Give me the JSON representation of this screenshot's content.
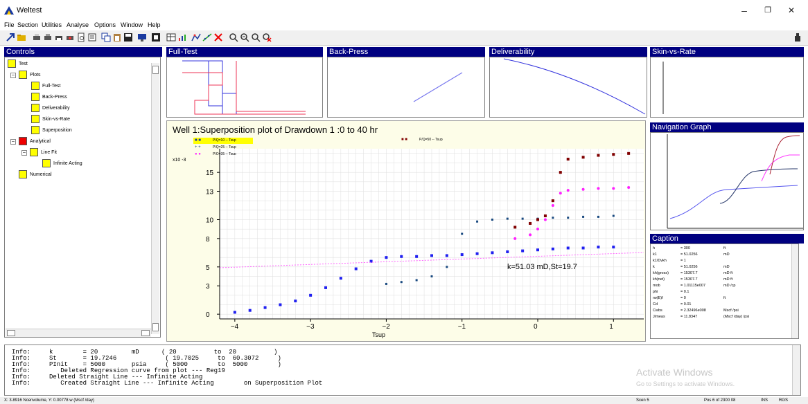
{
  "app": {
    "title": "Weltest"
  },
  "menu": [
    "File",
    "Section",
    "Utilities",
    "Analyse",
    "Options",
    "Window",
    "Help"
  ],
  "window_controls": {
    "minimize": "–",
    "maximize": "❐",
    "close": "✕"
  },
  "panels": {
    "controls": "Controls",
    "full_test": "Full-Test",
    "back_press": "Back-Press",
    "deliverability": "Deliverability",
    "skin_vs_rate": "Skin-vs-Rate",
    "navigation": "Navigation Graph",
    "caption": "Caption"
  },
  "tree": [
    {
      "label": "Test",
      "color": "#ffff00"
    },
    {
      "label": "Plots",
      "color": "#ffff00"
    },
    {
      "label": "Full-Test",
      "color": "#ffff00"
    },
    {
      "label": "Back-Press",
      "color": "#ffff00"
    },
    {
      "label": "Deliverability",
      "color": "#ffff00"
    },
    {
      "label": "Skin-vs-Rate",
      "color": "#ffff00"
    },
    {
      "label": "Superposition",
      "color": "#ffff00"
    },
    {
      "label": "Analytical",
      "color": "#ee0000"
    },
    {
      "label": "Line Fit",
      "color": "#ffff00"
    },
    {
      "label": "Infinite Acting",
      "color": "#ffff00"
    },
    {
      "label": "Numerical",
      "color": "#ffff00"
    }
  ],
  "main_plot": {
    "title": "Well 1:Superposition plot of Drawdown 1 :0 to 40 hr",
    "annotation": "k=51.03 mD,St=19.7",
    "y_multiplier": "x10 -3",
    "legend": [
      "P/Q=10 -- Tsup",
      "P/Q=25 -- Tsup",
      "P/Q=35 -- Tsup",
      "P/Q=50 -- Tsup"
    ]
  },
  "chart_data": {
    "type": "scatter",
    "title": "Well 1:Superposition plot of Drawdown 1 :0 to 40 hr",
    "xlabel": "Tsup",
    "ylabel": "",
    "xlim": [
      -4.2,
      1.4
    ],
    "ylim": [
      -0.5,
      17.5
    ],
    "xticks": [
      -4,
      -3,
      -2,
      -1,
      0,
      1
    ],
    "yticks": [
      0,
      3,
      5,
      8,
      10,
      13,
      15
    ],
    "grid": true,
    "legend_position": "top-left",
    "series": [
      {
        "name": "P/Q=10 -- Tsup",
        "color": "#2020f0",
        "points": [
          [
            -4.0,
            0.2
          ],
          [
            -3.8,
            0.4
          ],
          [
            -3.6,
            0.7
          ],
          [
            -3.4,
            1.0
          ],
          [
            -3.2,
            1.4
          ],
          [
            -3.0,
            2.0
          ],
          [
            -2.8,
            2.8
          ],
          [
            -2.6,
            3.8
          ],
          [
            -2.4,
            4.8
          ],
          [
            -2.2,
            5.6
          ],
          [
            -2.0,
            6.0
          ],
          [
            -1.8,
            6.1
          ],
          [
            -1.6,
            6.1
          ],
          [
            -1.4,
            6.2
          ],
          [
            -1.2,
            6.2
          ],
          [
            -1.0,
            6.3
          ],
          [
            -0.8,
            6.4
          ],
          [
            -0.6,
            6.5
          ],
          [
            -0.4,
            6.6
          ],
          [
            -0.2,
            6.7
          ],
          [
            0.0,
            6.8
          ],
          [
            0.2,
            6.9
          ],
          [
            0.4,
            7.0
          ],
          [
            0.6,
            7.0
          ],
          [
            0.8,
            7.1
          ],
          [
            1.0,
            7.1
          ]
        ]
      },
      {
        "name": "P/Q=25 -- Tsup",
        "color": "#1a4a80",
        "points": [
          [
            -2.0,
            3.2
          ],
          [
            -1.8,
            3.4
          ],
          [
            -1.6,
            3.6
          ],
          [
            -1.4,
            4.0
          ],
          [
            -1.2,
            5.0
          ],
          [
            -1.0,
            8.5
          ],
          [
            -0.8,
            9.8
          ],
          [
            -0.6,
            10.0
          ],
          [
            -0.4,
            10.1
          ],
          [
            -0.2,
            10.1
          ],
          [
            0.0,
            10.1
          ],
          [
            0.2,
            10.2
          ],
          [
            0.4,
            10.2
          ],
          [
            0.6,
            10.3
          ],
          [
            0.8,
            10.3
          ],
          [
            1.0,
            10.4
          ]
        ]
      },
      {
        "name": "P/Q=35 -- Tsup",
        "color": "#ff20ff",
        "points": [
          [
            -0.3,
            8.0
          ],
          [
            -0.1,
            8.4
          ],
          [
            0.0,
            9.0
          ],
          [
            0.1,
            10.0
          ],
          [
            0.2,
            11.5
          ],
          [
            0.3,
            12.8
          ],
          [
            0.4,
            13.1
          ],
          [
            0.6,
            13.2
          ],
          [
            0.8,
            13.3
          ],
          [
            1.0,
            13.3
          ],
          [
            1.2,
            13.4
          ]
        ]
      },
      {
        "name": "P/Q=50 -- Tsup",
        "color": "#800000",
        "points": [
          [
            -0.3,
            9.2
          ],
          [
            -0.1,
            9.6
          ],
          [
            0.0,
            10.0
          ],
          [
            0.1,
            10.4
          ],
          [
            0.2,
            12.0
          ],
          [
            0.3,
            15.0
          ],
          [
            0.4,
            16.4
          ],
          [
            0.6,
            16.6
          ],
          [
            0.8,
            16.8
          ],
          [
            1.0,
            16.9
          ],
          [
            1.2,
            17.0
          ]
        ]
      }
    ]
  },
  "caption_rows": [
    [
      "h",
      "= 300",
      "ft"
    ],
    [
      "k1",
      "= 51.0256",
      "mD"
    ],
    [
      "k1/Dvkh",
      "= 1",
      ""
    ],
    [
      "k",
      "= 51.0256",
      "mD"
    ],
    [
      "kh(gross)",
      "= 15307.7",
      "mD ft"
    ],
    [
      "kh(net)",
      "= 15307.7",
      "mD ft"
    ],
    [
      "mob",
      "= 1.01115e007",
      "mD /cp"
    ],
    [
      "phi",
      "= 0.1",
      ""
    ],
    [
      "rw(E)f",
      "= 0",
      "ft"
    ],
    [
      "Cd",
      "= 0.01",
      ""
    ],
    [
      "Cwbs",
      "= 2.32496e008",
      "Mscf /psi"
    ],
    [
      "J/meas",
      "= 11.8347",
      "(Mscf /day) /psi"
    ]
  ],
  "log_lines": [
    "Info:     k        = 20         mD      ( 20          to  20          )",
    "Info:     St       = 19.7246             ( 19.7025     to  60.3072     )",
    "Info:     PInit    = 5000       psia     ( 5000        to  5000        )",
    "Info:        Deleted Regression curve from plot --- Reg19",
    "Info:     Deleted Straight Line --- Infinite Acting",
    "Info:        Created Straight Line --- Infinite Acting        on Superposition Plot"
  ],
  "watermark": {
    "title": "Activate Windows",
    "subtitle": "Go to Settings to activate Windows."
  },
  "status": {
    "left": "X: 3.8916 Ncenvolume, Y: 0.00778 w (Mscf /day)",
    "mid": "Scen 5",
    "right": "Pos 6 of 2300 08",
    "ins": "INS",
    "num": "RGS"
  }
}
